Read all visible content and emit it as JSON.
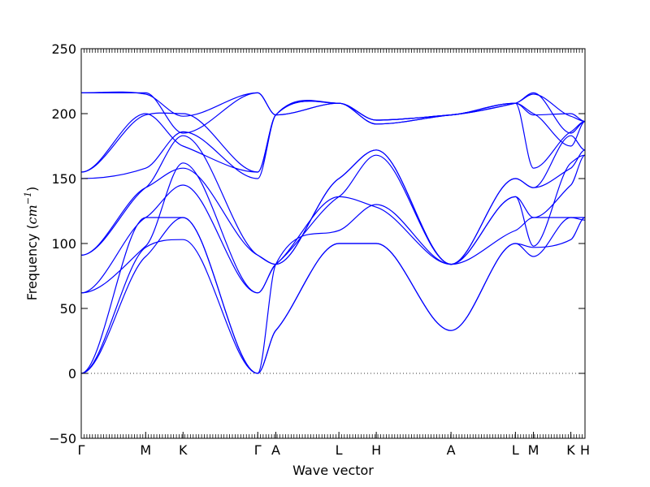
{
  "chart_data": {
    "type": "line",
    "title": "",
    "xlabel": "Wave vector",
    "ylabel_text": "Frequency (",
    "ylabel_unit": "cm",
    "ylabel_exp": "−1",
    "ylabel_close": ")",
    "ylim": [
      -50,
      250
    ],
    "xlim": [
      0,
      3.91
    ],
    "yticks": [
      -50,
      0,
      50,
      100,
      150,
      200,
      250
    ],
    "ytick_labels": [
      "−50",
      "0",
      "50",
      "100",
      "150",
      "200",
      "250"
    ],
    "xticks": [
      {
        "x": 0.0,
        "label": "Γ"
      },
      {
        "x": 0.5,
        "label": "M"
      },
      {
        "x": 0.79,
        "label": "K"
      },
      {
        "x": 1.37,
        "label": "Γ"
      },
      {
        "x": 1.51,
        "label": "A"
      },
      {
        "x": 2.0,
        "label": "L"
      },
      {
        "x": 2.29,
        "label": "H"
      },
      {
        "x": 2.87,
        "label": "A"
      },
      {
        "x": 3.37,
        "label": "L"
      },
      {
        "x": 3.51,
        "label": "M"
      },
      {
        "x": 3.8,
        "label": "K"
      },
      {
        "x": 3.91,
        "label": "H"
      }
    ],
    "zero_line": true,
    "line_color": "#0000ff",
    "bands": [
      [
        [
          0,
          0
        ],
        [
          0.5,
          90
        ],
        [
          0.79,
          120
        ],
        [
          1.37,
          0
        ],
        [
          1.51,
          33
        ],
        [
          2.0,
          100
        ],
        [
          2.29,
          100
        ],
        [
          2.87,
          33
        ],
        [
          3.37,
          100
        ],
        [
          3.51,
          90
        ],
        [
          3.8,
          120
        ],
        [
          3.91,
          120
        ]
      ],
      [
        [
          0,
          0
        ],
        [
          0.5,
          97
        ],
        [
          0.79,
          103
        ],
        [
          1.37,
          0
        ],
        [
          1.51,
          33
        ],
        [
          2.0,
          100
        ],
        [
          2.29,
          100
        ],
        [
          2.87,
          33
        ],
        [
          3.37,
          100
        ],
        [
          3.51,
          97
        ],
        [
          3.8,
          103
        ],
        [
          3.91,
          120
        ]
      ],
      [
        [
          0,
          0
        ],
        [
          0.5,
          120
        ],
        [
          0.79,
          120
        ],
        [
          1.37,
          0
        ],
        [
          1.51,
          84
        ],
        [
          2.0,
          110
        ],
        [
          2.29,
          130
        ],
        [
          2.87,
          84
        ],
        [
          3.37,
          110
        ],
        [
          3.51,
          120
        ],
        [
          3.8,
          120
        ],
        [
          3.91,
          118
        ]
      ],
      [
        [
          0,
          62
        ],
        [
          0.5,
          98
        ],
        [
          0.79,
          162
        ],
        [
          1.37,
          62
        ],
        [
          1.51,
          84
        ],
        [
          2.0,
          136
        ],
        [
          2.29,
          168
        ],
        [
          2.87,
          84
        ],
        [
          3.37,
          136
        ],
        [
          3.51,
          98
        ],
        [
          3.8,
          162
        ],
        [
          3.91,
          168
        ]
      ],
      [
        [
          0,
          62
        ],
        [
          0.5,
          120
        ],
        [
          0.79,
          145
        ],
        [
          1.37,
          62
        ],
        [
          1.51,
          84
        ],
        [
          2.0,
          136
        ],
        [
          2.29,
          128
        ],
        [
          2.87,
          84
        ],
        [
          3.37,
          136
        ],
        [
          3.51,
          120
        ],
        [
          3.8,
          145
        ],
        [
          3.91,
          168
        ]
      ],
      [
        [
          0,
          91
        ],
        [
          0.5,
          143
        ],
        [
          0.79,
          158
        ],
        [
          1.37,
          91
        ],
        [
          1.51,
          84
        ],
        [
          2.0,
          150
        ],
        [
          2.29,
          172
        ],
        [
          2.87,
          84
        ],
        [
          3.37,
          150
        ],
        [
          3.51,
          143
        ],
        [
          3.8,
          158
        ],
        [
          3.91,
          172
        ]
      ],
      [
        [
          0,
          91
        ],
        [
          0.5,
          143
        ],
        [
          0.79,
          183
        ],
        [
          1.37,
          91
        ],
        [
          1.51,
          84
        ],
        [
          2.0,
          150
        ],
        [
          2.29,
          172
        ],
        [
          2.87,
          84
        ],
        [
          3.37,
          150
        ],
        [
          3.51,
          143
        ],
        [
          3.8,
          183
        ],
        [
          3.91,
          172
        ]
      ],
      [
        [
          0,
          150
        ],
        [
          0.5,
          158
        ],
        [
          0.79,
          186
        ],
        [
          1.37,
          150
        ],
        [
          1.51,
          199
        ],
        [
          2.0,
          208
        ],
        [
          2.29,
          195
        ],
        [
          2.87,
          199
        ],
        [
          3.37,
          208
        ],
        [
          3.51,
          158
        ],
        [
          3.8,
          186
        ],
        [
          3.91,
          194
        ]
      ],
      [
        [
          0,
          155
        ],
        [
          0.5,
          199
        ],
        [
          0.79,
          200
        ],
        [
          1.37,
          155
        ],
        [
          1.51,
          199
        ],
        [
          2.0,
          208
        ],
        [
          2.29,
          195
        ],
        [
          2.87,
          199
        ],
        [
          3.37,
          208
        ],
        [
          3.51,
          199
        ],
        [
          3.8,
          200
        ],
        [
          3.91,
          194
        ]
      ],
      [
        [
          0,
          216
        ],
        [
          0.5,
          216
        ],
        [
          0.79,
          185
        ],
        [
          1.37,
          216
        ],
        [
          1.51,
          199
        ],
        [
          2.0,
          208
        ],
        [
          2.29,
          192
        ],
        [
          2.87,
          199
        ],
        [
          3.37,
          208
        ],
        [
          3.51,
          216
        ],
        [
          3.8,
          185
        ],
        [
          3.91,
          194
        ]
      ],
      [
        [
          0,
          216
        ],
        [
          0.5,
          215
        ],
        [
          0.79,
          198
        ],
        [
          1.37,
          216
        ],
        [
          1.51,
          199
        ],
        [
          2.0,
          208
        ],
        [
          2.29,
          192
        ],
        [
          2.87,
          199
        ],
        [
          3.37,
          208
        ],
        [
          3.51,
          215
        ],
        [
          3.8,
          198
        ],
        [
          3.91,
          194
        ]
      ],
      [
        [
          0,
          155
        ],
        [
          0.5,
          200
        ],
        [
          0.79,
          175
        ],
        [
          1.37,
          155
        ],
        [
          1.51,
          199
        ],
        [
          2.0,
          208
        ],
        [
          2.29,
          195
        ],
        [
          2.87,
          199
        ],
        [
          3.37,
          208
        ],
        [
          3.51,
          200
        ],
        [
          3.8,
          175
        ],
        [
          3.91,
          194
        ]
      ]
    ]
  }
}
